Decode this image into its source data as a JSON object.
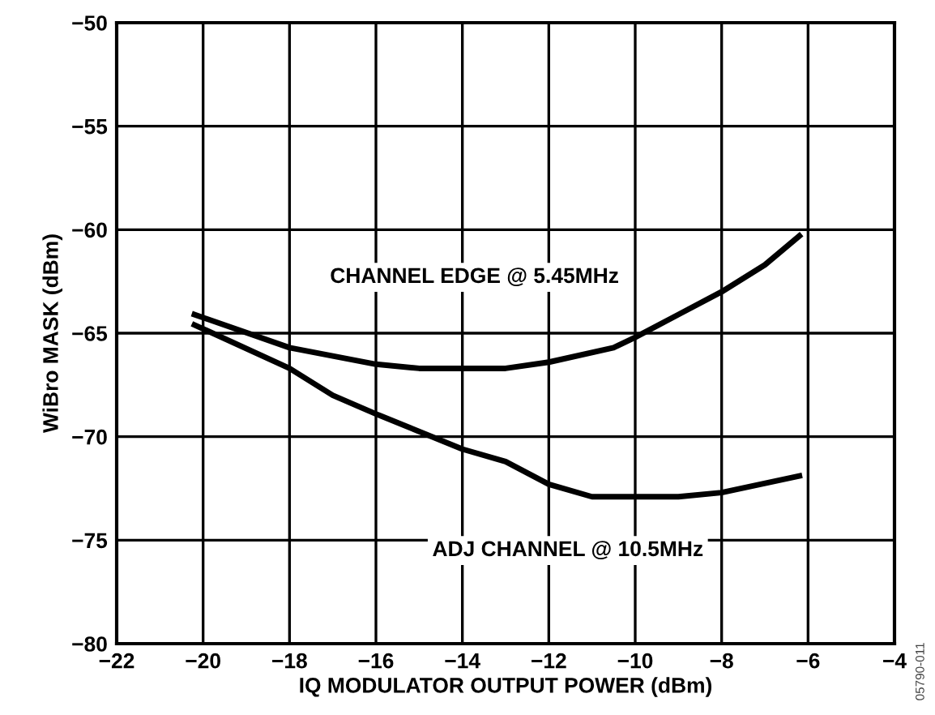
{
  "chart_data": {
    "type": "line",
    "xlabel": "IQ MODULATOR OUTPUT POWER (dBm)",
    "ylabel": "WiBro MASK (dBm)",
    "xlim": [
      -22,
      -4
    ],
    "xticks": [
      {
        "value": -22,
        "label": "−22"
      },
      {
        "value": -20,
        "label": "−20"
      },
      {
        "value": -18,
        "label": "−18"
      },
      {
        "value": -16,
        "label": "−16"
      },
      {
        "value": -14,
        "label": "−14"
      },
      {
        "value": -12,
        "label": "−12"
      },
      {
        "value": -10,
        "label": "−10"
      },
      {
        "value": -8,
        "label": "−8"
      },
      {
        "value": -6,
        "label": "−6"
      },
      {
        "value": -4,
        "label": "−4"
      }
    ],
    "ylim": [
      -80,
      -50
    ],
    "yticks": [
      {
        "value": -80,
        "label": "−80"
      },
      {
        "value": -75,
        "label": "−75"
      },
      {
        "value": -70,
        "label": "−70"
      },
      {
        "value": -65,
        "label": "−65"
      },
      {
        "value": -60,
        "label": "−60"
      },
      {
        "value": -55,
        "label": "−55"
      },
      {
        "value": -50,
        "label": "−50"
      }
    ],
    "grid": true,
    "legend": false,
    "annotations": [
      "05790-011"
    ],
    "series": [
      {
        "name": "CHANNEL EDGE @ 5.45MHz",
        "color": "#000000",
        "x": [
          -20.2,
          -18,
          -16,
          -15,
          -13,
          -12,
          -10.5,
          -10,
          -9,
          -8,
          -7,
          -6.2
        ],
        "values": [
          -64.1,
          -65.7,
          -66.5,
          -66.7,
          -66.7,
          -66.4,
          -65.7,
          -65.2,
          -64.1,
          -63.0,
          -61.7,
          -60.3
        ]
      },
      {
        "name": "ADJ CHANNEL @ 10.5MHz",
        "color": "#000000",
        "x": [
          -20.2,
          -18,
          -17,
          -16,
          -14,
          -13,
          -12,
          -11,
          -10,
          -9,
          -8,
          -6.2
        ],
        "values": [
          -64.6,
          -66.7,
          -68.0,
          -68.9,
          -70.6,
          -71.2,
          -72.3,
          -72.9,
          -72.9,
          -72.9,
          -72.7,
          -71.9
        ]
      }
    ]
  }
}
